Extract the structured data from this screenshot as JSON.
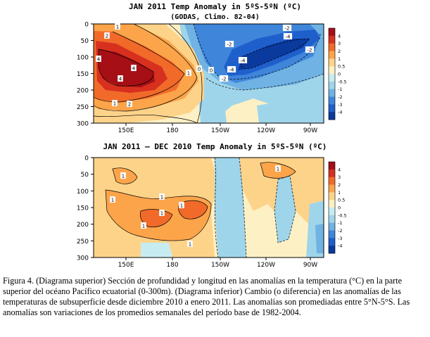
{
  "chart_data": [
    {
      "type": "heatmap",
      "title": "JAN 2011 Temp Anomaly in 5ºS-5ºN (ºC)",
      "subtitle": "(GODAS, Climo. 82-04)",
      "x_ticks": [
        "150E",
        "180",
        "150W",
        "120W",
        "90W"
      ],
      "y_ticks": [
        "0",
        "50",
        "100",
        "150",
        "200",
        "250",
        "300"
      ],
      "ylim": [
        300,
        0
      ],
      "colorbar_ticks": [
        "4",
        "3",
        "2",
        "1",
        "0.5",
        "0",
        "-0.5",
        "-1",
        "-2",
        "-3",
        "-4"
      ],
      "contour_labels": [
        "2",
        "1",
        "4",
        "4",
        "4",
        "1",
        "2",
        "1",
        "0",
        "-2",
        "-4",
        "-2",
        "-4",
        "-2",
        "-4",
        "-2",
        "0"
      ]
    },
    {
      "type": "heatmap",
      "title": "JAN 2011 – DEC 2010 Temp Anomaly in 5ºS-5ºN (ºC)",
      "x_ticks": [
        "150E",
        "180",
        "150W",
        "120W",
        "90W"
      ],
      "y_ticks": [
        "0",
        "50",
        "100",
        "150",
        "200",
        "250",
        "300"
      ],
      "ylim": [
        300,
        0
      ],
      "colorbar_ticks": [
        "4",
        "3",
        "2",
        "1",
        "0.5",
        "0",
        "-0.5",
        "-1",
        "-2",
        "-3",
        "-4"
      ],
      "contour_labels": [
        "1",
        "1",
        "1",
        "1",
        "1",
        "1",
        "1",
        "1"
      ]
    }
  ],
  "colors": {
    "c4": "#a50f15",
    "c3": "#d7301f",
    "c2": "#f16a2a",
    "c1": "#fca44a",
    "c05": "#fdd38a",
    "c0": "#fdf0c4",
    "cm0": "#c7ecf1",
    "cm05": "#9fd5ea",
    "cm1": "#6fb2e3",
    "cm2": "#3f86db",
    "cm3": "#1f5fcc",
    "cm4": "#0a3a9e"
  },
  "caption": {
    "label": "Figura 4.",
    "text": "(Diagrama superior) Sección de profundidad y longitud en las anomalías en la temperatura (°C) en la parte superior del océano Pacífico ecuatorial (0-300m). (Diagrama inferior) Cambio (o diferencia) en las anomalías de las temperaturas de subsuperficie desde diciembre 2010 a enero 2011. Las anomalías son promediadas entre 5°N-5°S. Las anomalías son variaciones de los promedios semanales del período base de 1982-2004."
  }
}
